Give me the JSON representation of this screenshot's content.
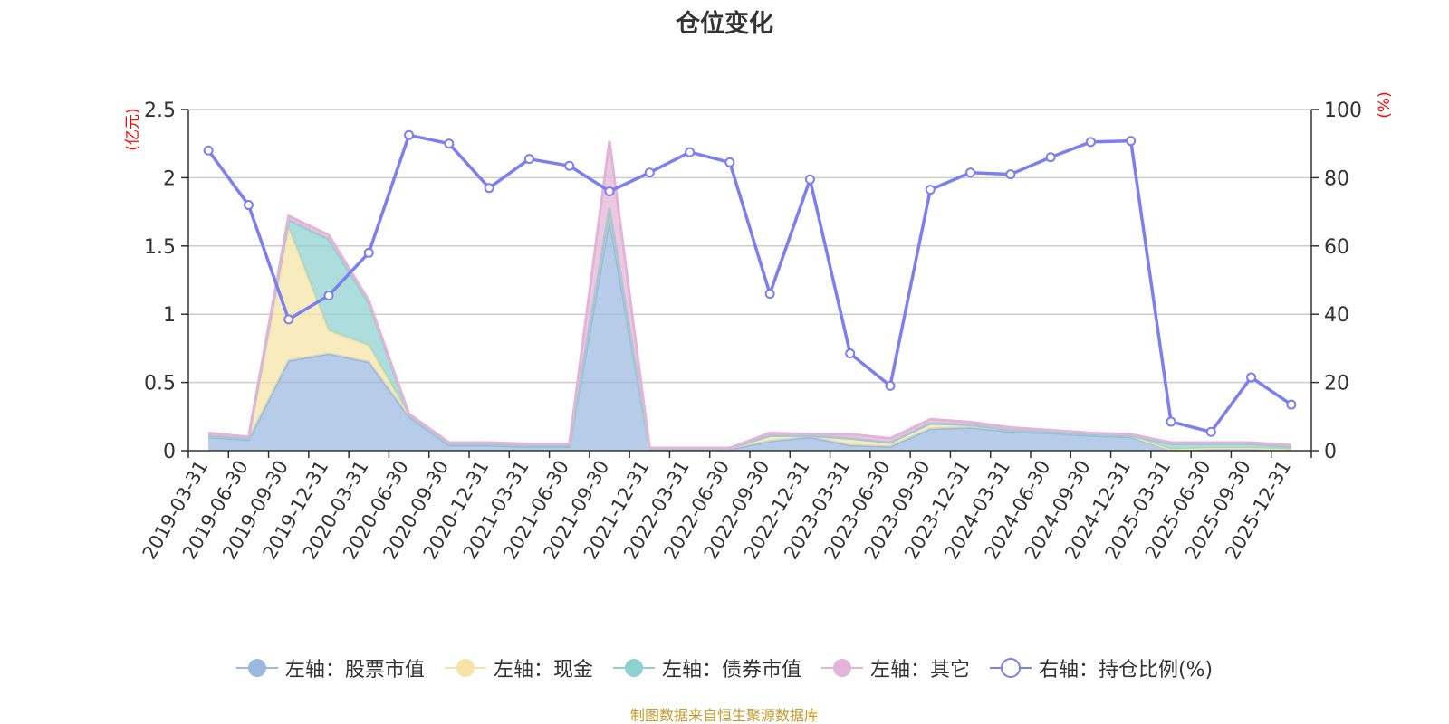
{
  "title": "仓位变化",
  "source": "制图数据来自恒生聚源数据库",
  "left_axis_unit": "(亿元)",
  "right_axis_unit": "(%)",
  "legend": [
    {
      "label": "左轴：股票市值",
      "color": "#9bb8e0",
      "icon": "filled-circle-marker"
    },
    {
      "label": "左轴：现金",
      "color": "#f5e4a6",
      "icon": "filled-circle-marker"
    },
    {
      "label": "左轴：债券市值",
      "color": "#8fd0d0",
      "icon": "filled-circle-marker"
    },
    {
      "label": "左轴：其它",
      "color": "#e3b4d8",
      "icon": "filled-circle-marker"
    },
    {
      "label": "右轴：持仓比例(%)",
      "color": "#7b7ff0",
      "icon": "hollow-circle-marker"
    }
  ],
  "chart_data": {
    "type": "area",
    "categories": [
      "2019-03-31",
      "2019-06-30",
      "2019-09-30",
      "2019-12-31",
      "2020-03-31",
      "2020-06-30",
      "2020-09-30",
      "2020-12-31",
      "2021-03-31",
      "2021-06-30",
      "2021-09-30",
      "2021-12-31",
      "2022-03-31",
      "2022-06-30",
      "2022-09-30",
      "2022-12-31",
      "2023-03-31",
      "2023-06-30",
      "2023-09-30",
      "2023-12-31",
      "2024-03-31",
      "2024-06-30",
      "2024-09-30",
      "2024-12-31",
      "2025-03-31",
      "2025-06-30",
      "2025-09-30",
      "2025-12-31"
    ],
    "left_axis": {
      "min": 0,
      "max": 2.5,
      "ticks": [
        0,
        0.5,
        1,
        1.5,
        2,
        2.5
      ],
      "tick_labels": [
        "0",
        "0.5",
        "1",
        "1.5",
        "2",
        "2.5"
      ]
    },
    "right_axis": {
      "min": 0,
      "max": 100,
      "ticks": [
        0,
        20,
        40,
        60,
        80,
        100
      ],
      "tick_labels": [
        "0",
        "20",
        "40",
        "60",
        "80",
        "100"
      ]
    },
    "grid": true,
    "legend_position": "bottom",
    "stacked": true,
    "series": [
      {
        "name": "左轴：股票市值",
        "axis": "left",
        "type": "area",
        "color": "#9bb8e0",
        "values": [
          0.1,
          0.08,
          0.66,
          0.71,
          0.65,
          0.25,
          0.04,
          0.04,
          0.03,
          0.03,
          1.7,
          0.01,
          0.01,
          0.01,
          0.07,
          0.1,
          0.04,
          0.03,
          0.16,
          0.17,
          0.14,
          0.13,
          0.11,
          0.1,
          0.01,
          0.01,
          0.01,
          0.01
        ]
      },
      {
        "name": "左轴：现金",
        "axis": "left",
        "type": "area",
        "color": "#f5e4a6",
        "values": [
          0.01,
          0.01,
          0.97,
          0.17,
          0.12,
          0.01,
          0.01,
          0.01,
          0.01,
          0.01,
          0.08,
          0.0,
          0.0,
          0.01,
          0.04,
          0.01,
          0.05,
          0.03,
          0.04,
          0.02,
          0.01,
          0.01,
          0.01,
          0.01,
          0.0,
          0.01,
          0.01,
          0.0
        ]
      },
      {
        "name": "左轴：债券市值",
        "axis": "left",
        "type": "area",
        "color": "#8fd0d0",
        "values": [
          0.0,
          0.0,
          0.06,
          0.67,
          0.31,
          0.0,
          0.0,
          0.0,
          0.0,
          0.0,
          0.0,
          0.0,
          0.0,
          0.0,
          0.0,
          0.0,
          0.0,
          0.0,
          0.0,
          0.0,
          0.0,
          0.0,
          0.0,
          0.0,
          0.04,
          0.03,
          0.03,
          0.02
        ]
      },
      {
        "name": "左轴：其它",
        "axis": "left",
        "type": "area",
        "color": "#e3b4d8",
        "values": [
          0.02,
          0.01,
          0.03,
          0.03,
          0.02,
          0.01,
          0.01,
          0.01,
          0.01,
          0.01,
          0.49,
          0.01,
          0.01,
          0.0,
          0.02,
          0.01,
          0.03,
          0.03,
          0.03,
          0.02,
          0.02,
          0.01,
          0.01,
          0.01,
          0.01,
          0.01,
          0.01,
          0.01
        ]
      },
      {
        "name": "右轴：持仓比例(%)",
        "axis": "right",
        "type": "line",
        "color": "#7b7ff0",
        "values": [
          88,
          72,
          38.5,
          45.5,
          58,
          92.5,
          90,
          77,
          85.5,
          83.5,
          76,
          81.5,
          87.5,
          84.5,
          46,
          79.5,
          28.5,
          19,
          76.5,
          81.5,
          81,
          86,
          90.5,
          90.8,
          8.5,
          5.5,
          21.5,
          13.5
        ]
      }
    ]
  }
}
